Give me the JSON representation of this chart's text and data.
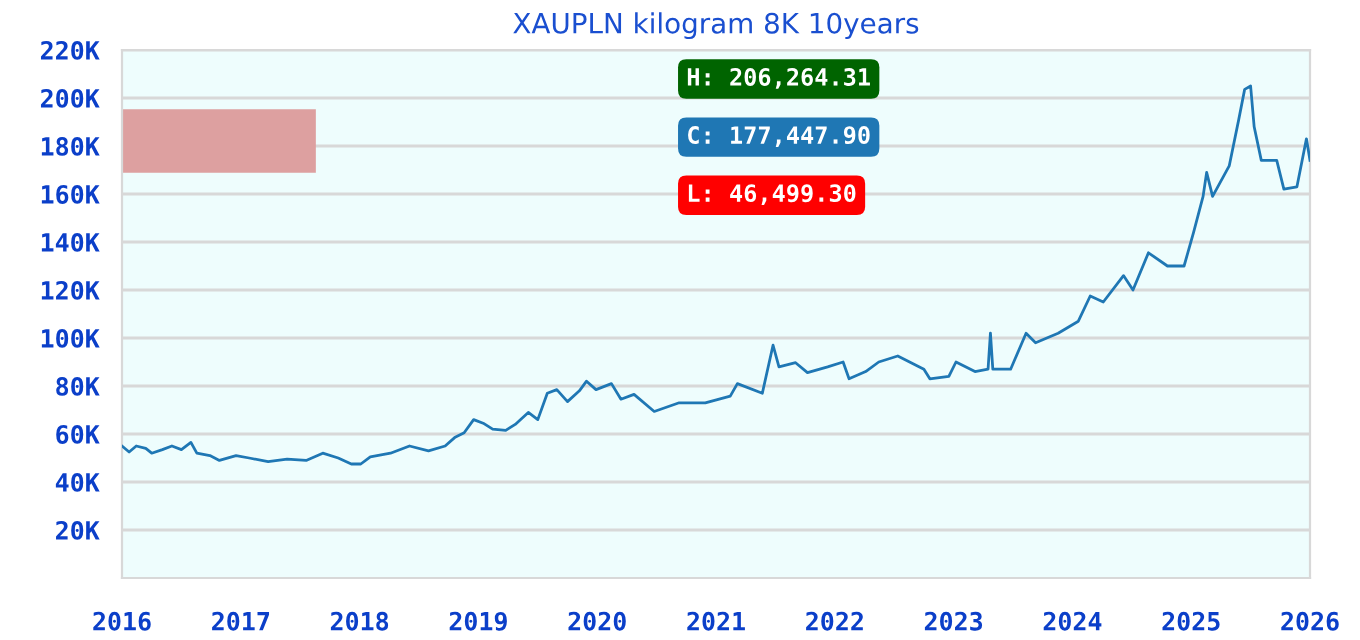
{
  "chart_data": {
    "type": "line",
    "title": "XAUPLN kilogram 8K 10years",
    "x": [
      2016.0,
      2016.06,
      2016.12,
      2016.2,
      2016.25,
      2016.34,
      2016.42,
      2016.5,
      2016.58,
      2016.63,
      2016.74,
      2016.82,
      2016.96,
      2017.07,
      2017.23,
      2017.39,
      2017.55,
      2017.69,
      2017.82,
      2017.93,
      2018.01,
      2018.09,
      2018.26,
      2018.42,
      2018.58,
      2018.72,
      2018.8,
      2018.88,
      2018.96,
      2019.04,
      2019.12,
      2019.23,
      2019.31,
      2019.42,
      2019.5,
      2019.58,
      2019.66,
      2019.75,
      2019.85,
      2019.91,
      2019.99,
      2020.12,
      2020.2,
      2020.31,
      2020.48,
      2020.69,
      2020.91,
      2021.12,
      2021.18,
      2021.39,
      2021.48,
      2021.53,
      2021.67,
      2021.77,
      2021.94,
      2022.07,
      2022.12,
      2022.26,
      2022.37,
      2022.53,
      2022.75,
      2022.8,
      2022.96,
      2023.02,
      2023.18,
      2023.29,
      2023.31,
      2023.33,
      2023.48,
      2023.61,
      2023.69,
      2023.88,
      2024.05,
      2024.15,
      2024.26,
      2024.43,
      2024.51,
      2024.64,
      2024.8,
      2024.94,
      2025.02,
      2025.1,
      2025.13,
      2025.18,
      2025.32,
      2025.4,
      2025.45,
      2025.5,
      2025.53,
      2025.59,
      2025.72,
      2025.78,
      2025.89,
      2025.97,
      2026.0
    ],
    "series": [
      {
        "color": "#1f77b4",
        "values": [
          55000,
          52500,
          55000,
          54000,
          52000,
          53500,
          55000,
          53500,
          56500,
          52000,
          51000,
          49000,
          51000,
          50000,
          48500,
          49500,
          49000,
          52000,
          50000,
          47500,
          47500,
          50500,
          52000,
          55000,
          53000,
          55000,
          58500,
          60500,
          66000,
          64500,
          62000,
          61500,
          64000,
          69000,
          66000,
          77000,
          78500,
          73500,
          78000,
          82000,
          78500,
          81000,
          74500,
          76500,
          69400,
          73000,
          73000,
          75800,
          81000,
          77000,
          97000,
          88000,
          89700,
          85600,
          88000,
          90000,
          83000,
          86000,
          90000,
          92500,
          87000,
          83000,
          84000,
          90000,
          86000,
          87000,
          102000,
          87000,
          87000,
          102000,
          98000,
          102000,
          107000,
          117500,
          115000,
          126000,
          120000,
          135500,
          130000,
          130000,
          144000,
          159000,
          169000,
          159000,
          171700,
          191000,
          203600,
          205000,
          188000,
          174000,
          174000,
          162000,
          163000,
          183000,
          174000
        ]
      }
    ],
    "xlim": [
      2016,
      2026
    ],
    "xticks": [
      2016,
      2017,
      2018,
      2019,
      2020,
      2021,
      2022,
      2023,
      2024,
      2025,
      2026
    ],
    "ylim": [
      0,
      220000
    ],
    "yticks": [
      {
        "value": 20000,
        "label": "20K"
      },
      {
        "value": 40000,
        "label": "40K"
      },
      {
        "value": 60000,
        "label": "60K"
      },
      {
        "value": 80000,
        "label": "80K"
      },
      {
        "value": 100000,
        "label": "100K"
      },
      {
        "value": 120000,
        "label": "120K"
      },
      {
        "value": 140000,
        "label": "140K"
      },
      {
        "value": 160000,
        "label": "160K"
      },
      {
        "value": 180000,
        "label": "180K"
      },
      {
        "value": 200000,
        "label": "200K"
      },
      {
        "value": 220000,
        "label": "220K"
      }
    ],
    "grid": "y",
    "annotations": [
      "H: 206,264.31",
      "C: 177,447.90",
      "L: 46,499.30"
    ]
  }
}
